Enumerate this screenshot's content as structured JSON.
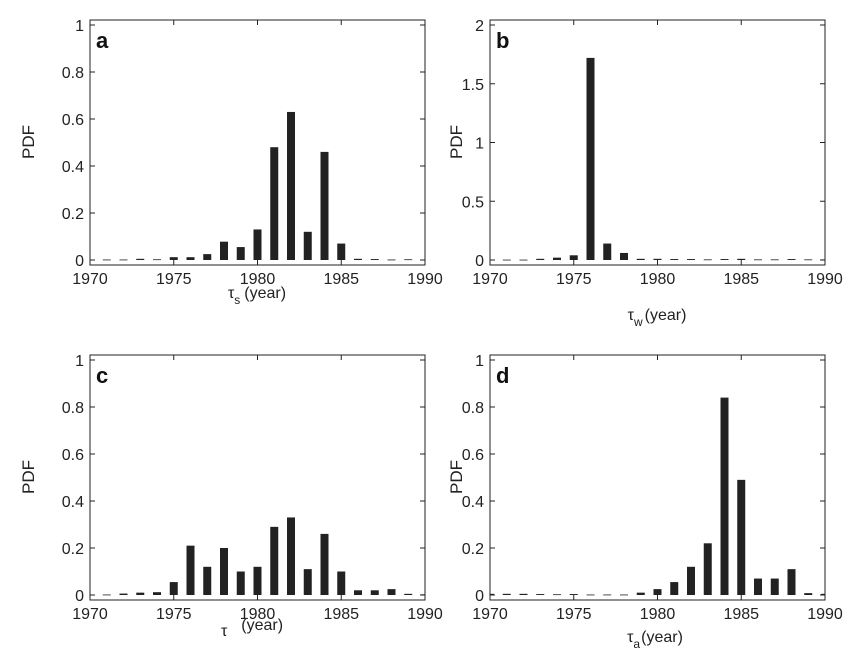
{
  "chart_data": [
    {
      "type": "bar",
      "panel_label": "a",
      "ylabel": "PDF",
      "xlabel": {
        "symbol": "τ",
        "subscript": "s",
        "unit": "(year)"
      },
      "xlim": [
        1970,
        1990
      ],
      "ylim": [
        0,
        1
      ],
      "xticks": [
        "1970",
        "1975",
        "1980",
        "1985",
        "1990"
      ],
      "yticks": [
        "0",
        "0.2",
        "0.4",
        "0.6",
        "0.8",
        "1"
      ],
      "x": [
        1970,
        1971,
        1972,
        1973,
        1974,
        1975,
        1976,
        1977,
        1978,
        1979,
        1980,
        1981,
        1982,
        1983,
        1984,
        1985,
        1986,
        1987,
        1988,
        1989,
        1990
      ],
      "values": [
        0.002,
        0.002,
        0.002,
        0.005,
        0.003,
        0.012,
        0.012,
        0.025,
        0.078,
        0.055,
        0.13,
        0.48,
        0.63,
        0.12,
        0.46,
        0.07,
        0.005,
        0.004,
        0.002,
        0.003,
        0.002
      ]
    },
    {
      "type": "bar",
      "panel_label": "b",
      "ylabel": "PDF",
      "xlabel": {
        "symbol": "τ",
        "subscript": "w",
        "unit": "(year)"
      },
      "xlim": [
        1970,
        1990
      ],
      "ylim": [
        0,
        2
      ],
      "xticks": [
        "1970",
        "1975",
        "1980",
        "1985",
        "1990"
      ],
      "yticks": [
        "0",
        "0.5",
        "1",
        "1.5",
        "2"
      ],
      "x": [
        1970,
        1971,
        1972,
        1973,
        1974,
        1975,
        1976,
        1977,
        1978,
        1979,
        1980,
        1981,
        1982,
        1983,
        1984,
        1985,
        1986,
        1987,
        1988,
        1989,
        1990
      ],
      "values": [
        0.003,
        0.003,
        0.003,
        0.01,
        0.02,
        0.04,
        1.72,
        0.14,
        0.06,
        0.01,
        0.01,
        0.008,
        0.008,
        0.005,
        0.008,
        0.01,
        0.005,
        0.005,
        0.008,
        0.005,
        0.005
      ]
    },
    {
      "type": "bar",
      "panel_label": "c",
      "ylabel": "PDF",
      "xlabel": {
        "symbol": "τ",
        "subscript": "",
        "unit": "(year)"
      },
      "xlim": [
        1970,
        1990
      ],
      "ylim": [
        0,
        1
      ],
      "xticks": [
        "1970",
        "1975",
        "1980",
        "1985",
        "1990"
      ],
      "yticks": [
        "0",
        "0.2",
        "0.4",
        "0.6",
        "0.8",
        "1"
      ],
      "x": [
        1970,
        1971,
        1972,
        1973,
        1974,
        1975,
        1976,
        1977,
        1978,
        1979,
        1980,
        1981,
        1982,
        1983,
        1984,
        1985,
        1986,
        1987,
        1988,
        1989,
        1990
      ],
      "values": [
        0.002,
        0.002,
        0.006,
        0.01,
        0.012,
        0.055,
        0.21,
        0.12,
        0.2,
        0.1,
        0.12,
        0.29,
        0.33,
        0.11,
        0.26,
        0.1,
        0.02,
        0.02,
        0.025,
        0.005,
        0.003
      ]
    },
    {
      "type": "bar",
      "panel_label": "d",
      "ylabel": "PDF",
      "xlabel": {
        "symbol": "τ",
        "subscript": "a",
        "unit": "(year)"
      },
      "xlim": [
        1970,
        1990
      ],
      "ylim": [
        0,
        1
      ],
      "xticks": [
        "1970",
        "1975",
        "1980",
        "1985",
        "1990"
      ],
      "yticks": [
        "0",
        "0.2",
        "0.4",
        "0.6",
        "0.8",
        "1"
      ],
      "x": [
        1970,
        1971,
        1972,
        1973,
        1974,
        1975,
        1976,
        1977,
        1978,
        1979,
        1980,
        1981,
        1982,
        1983,
        1984,
        1985,
        1986,
        1987,
        1988,
        1989,
        1990
      ],
      "values": [
        0.005,
        0.005,
        0.005,
        0.004,
        0.003,
        0.004,
        0.002,
        0.002,
        0.002,
        0.01,
        0.025,
        0.055,
        0.12,
        0.22,
        0.84,
        0.49,
        0.07,
        0.07,
        0.11,
        0.008,
        0.005
      ]
    }
  ],
  "colors": {
    "bar": "#222222",
    "axis": "#222222",
    "text": "#222222"
  }
}
